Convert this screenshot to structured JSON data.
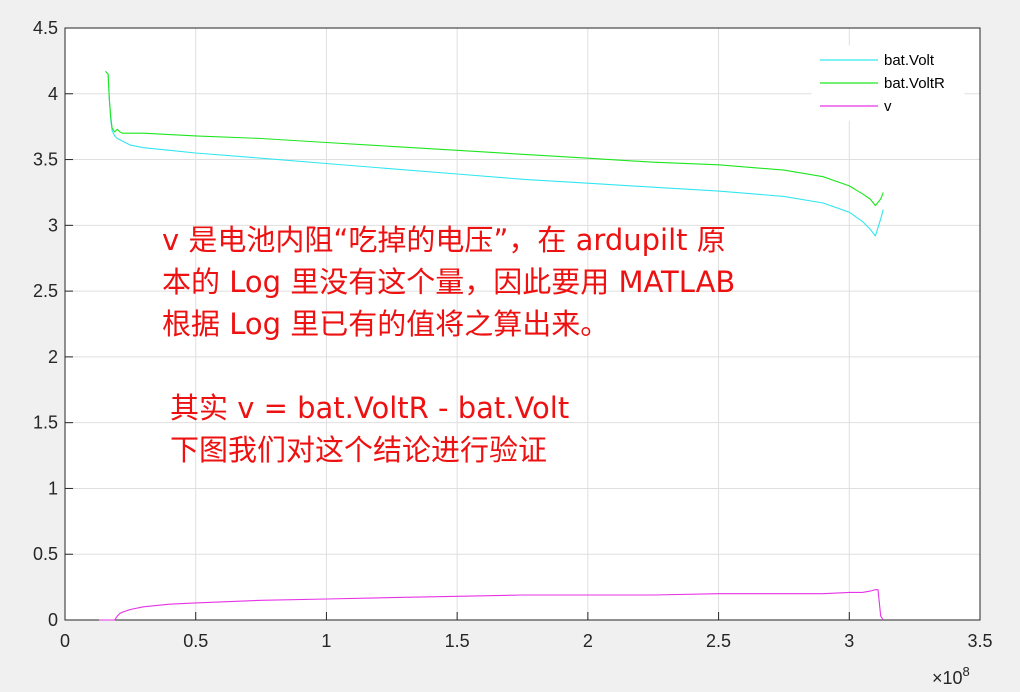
{
  "chart_data": {
    "type": "line",
    "title": "",
    "xlabel": "",
    "ylabel": "",
    "xlim": [
      0,
      3.5
    ],
    "ylim": [
      0,
      4.5
    ],
    "x_exponent_label": "×10⁸",
    "x_exponent_base": "×10",
    "x_exponent_power": "8",
    "xticks": [
      "0",
      "0.5",
      "1",
      "1.5",
      "2",
      "2.5",
      "3",
      "3.5"
    ],
    "yticks": [
      "0",
      "0.5",
      "1",
      "1.5",
      "2",
      "2.5",
      "3",
      "3.5",
      "4",
      "4.5"
    ],
    "grid": true,
    "legend_position": "top-right",
    "series": [
      {
        "name": "bat.Volt",
        "color": "#33e6ee",
        "x": [
          0.155,
          0.165,
          0.17,
          0.175,
          0.18,
          0.19,
          0.2,
          0.21,
          0.22,
          0.25,
          0.3,
          0.4,
          0.5,
          0.75,
          1.0,
          1.25,
          1.5,
          1.75,
          2.0,
          2.25,
          2.5,
          2.75,
          2.9,
          3.0,
          3.05,
          3.08,
          3.1,
          3.12,
          3.13
        ],
        "y": [
          4.17,
          4.15,
          3.95,
          3.8,
          3.72,
          3.68,
          3.66,
          3.65,
          3.64,
          3.61,
          3.59,
          3.57,
          3.55,
          3.51,
          3.47,
          3.43,
          3.39,
          3.35,
          3.32,
          3.29,
          3.26,
          3.22,
          3.17,
          3.1,
          3.03,
          2.97,
          2.92,
          3.05,
          3.12
        ]
      },
      {
        "name": "bat.VoltR",
        "color": "#1ee61e",
        "x": [
          0.155,
          0.165,
          0.17,
          0.175,
          0.18,
          0.19,
          0.2,
          0.21,
          0.22,
          0.25,
          0.3,
          0.4,
          0.5,
          0.75,
          1.0,
          1.25,
          1.5,
          1.75,
          2.0,
          2.25,
          2.5,
          2.75,
          2.9,
          3.0,
          3.05,
          3.08,
          3.1,
          3.12,
          3.13
        ],
        "y": [
          4.17,
          4.15,
          3.95,
          3.82,
          3.74,
          3.71,
          3.73,
          3.71,
          3.7,
          3.7,
          3.7,
          3.69,
          3.68,
          3.66,
          3.63,
          3.6,
          3.57,
          3.54,
          3.51,
          3.48,
          3.46,
          3.42,
          3.37,
          3.3,
          3.24,
          3.2,
          3.15,
          3.2,
          3.25
        ]
      },
      {
        "name": "v",
        "color": "#e633e6",
        "x": [
          0.13,
          0.19,
          0.2,
          0.21,
          0.22,
          0.25,
          0.3,
          0.4,
          0.5,
          0.75,
          1.0,
          1.25,
          1.5,
          1.75,
          2.0,
          2.25,
          2.5,
          2.75,
          2.9,
          3.0,
          3.05,
          3.08,
          3.1,
          3.11,
          3.12,
          3.13
        ],
        "y": [
          0.0,
          0.0,
          0.03,
          0.05,
          0.06,
          0.08,
          0.1,
          0.12,
          0.13,
          0.15,
          0.16,
          0.17,
          0.18,
          0.19,
          0.19,
          0.19,
          0.2,
          0.2,
          0.2,
          0.21,
          0.21,
          0.22,
          0.23,
          0.23,
          0.03,
          0.0
        ]
      }
    ]
  },
  "annotations": {
    "line1": "v 是电池内阻“吃掉的电压”，在 ardupilt 原",
    "line2": "本的 Log 里没有这个量，因此要用 MATLAB",
    "line3": "根据 Log 里已有的值将之算出来。",
    "line4": "其实 v = bat.VoltR - bat.Volt",
    "line5": "下图我们对这个结论进行验证"
  }
}
